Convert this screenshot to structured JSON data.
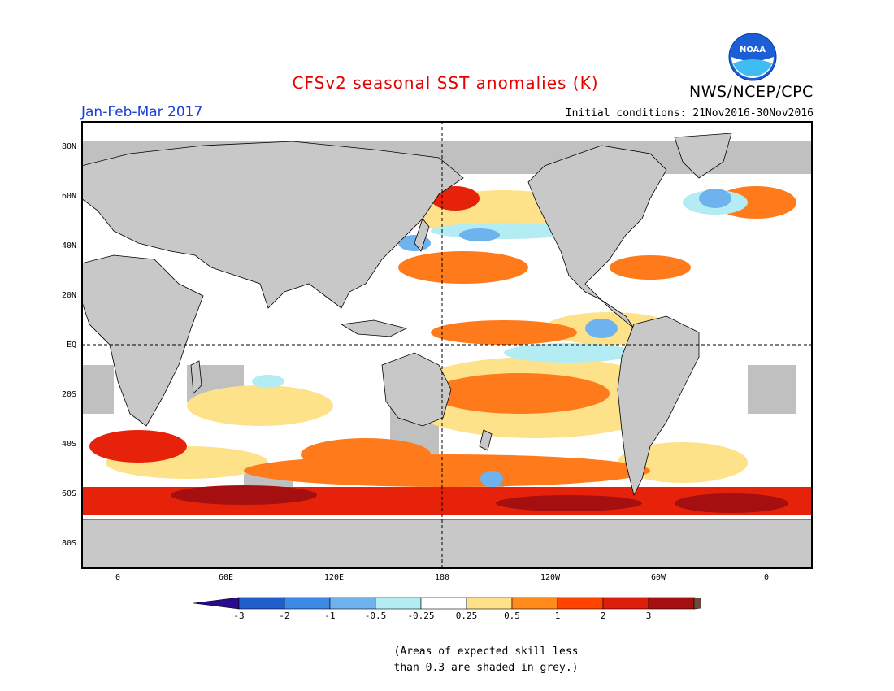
{
  "header": {
    "title": "CFSv2 seasonal SST anomalies (K)",
    "season": "Jan-Feb-Mar 2017",
    "initial_conditions": "Initial conditions: 21Nov2016-30Nov2016",
    "agency": "NWS/NCEP/CPC",
    "logo_text": "NOAA"
  },
  "axes": {
    "lat_labels": [
      "80N",
      "60N",
      "40N",
      "20N",
      "EQ",
      "20S",
      "40S",
      "60S",
      "80S"
    ],
    "lon_labels": [
      "0",
      "60E",
      "120E",
      "180",
      "120W",
      "60W",
      "0"
    ]
  },
  "colorbar": {
    "labels": [
      "-3",
      "-2",
      "-1",
      "-0.5",
      "-0.25",
      "0.25",
      "0.5",
      "1",
      "2",
      "3"
    ],
    "colors": [
      "#2a0a8c",
      "#1e5fcc",
      "#3c8ae6",
      "#6fb2f0",
      "#b4ecf4",
      "#ffffff",
      "#fde28a",
      "#ff8c1a",
      "#ff4400",
      "#dc1e0a",
      "#a50f0f",
      "#6e4a3a"
    ]
  },
  "legend_note": {
    "line1": "(Areas of expected skill less",
    "line2": "than 0.3 are shaded in grey.)"
  },
  "map_colors": {
    "land": "#c8c8c8",
    "ocean_neutral": "#ffffff",
    "low_skill": "#c0c0c0",
    "warm_light": "#fde28a",
    "warm_mid": "#ff7a1a",
    "warm_strong": "#e6230a",
    "warm_max": "#a50f0f",
    "cool_light": "#b4ecf4",
    "cool_mid": "#6fb2f0",
    "cool_strong": "#3c8ae6"
  }
}
